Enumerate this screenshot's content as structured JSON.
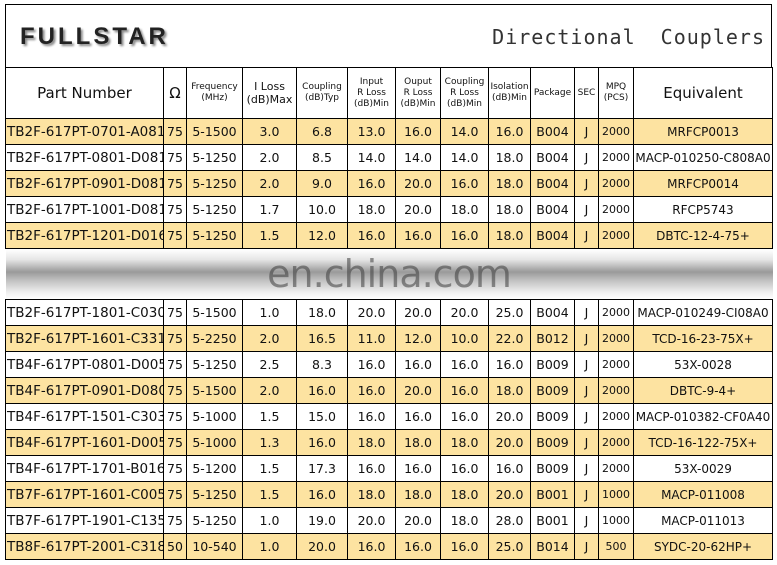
{
  "header": {
    "logo": "FULLSTAR",
    "title": "Directional Couplers"
  },
  "table": {
    "columns": [
      [
        "Part Number"
      ],
      [
        "Ω"
      ],
      [
        "Frequency",
        "(MHz)"
      ],
      [
        "I Loss",
        "(dB)Max"
      ],
      [
        "Coupling",
        "(dB)Typ"
      ],
      [
        "Input",
        "R Loss",
        "(dB)Min"
      ],
      [
        "Ouput",
        "R Loss",
        "(dB)Min"
      ],
      [
        "Coupling",
        "R Loss",
        "(dB)Min"
      ],
      [
        "Isolation",
        "(dB)Min"
      ],
      [
        "Package"
      ],
      [
        "SEC"
      ],
      [
        "MPQ",
        "(PCS)"
      ],
      [
        "Equivalent"
      ]
    ],
    "rows": [
      [
        "TB2F-617PT-0701-A081",
        "75",
        "5-1500",
        "3.0",
        "6.8",
        "13.0",
        "16.0",
        "14.0",
        "16.0",
        "B004",
        "J",
        "2000",
        "MRFCP0013"
      ],
      [
        "TB2F-617PT-0801-D081",
        "75",
        "5-1250",
        "2.0",
        "8.5",
        "14.0",
        "14.0",
        "14.0",
        "18.0",
        "B004",
        "J",
        "2000",
        "MACP-010250-C808A0"
      ],
      [
        "TB2F-617PT-0901-D081",
        "75",
        "5-1250",
        "2.0",
        "9.0",
        "16.0",
        "20.0",
        "16.0",
        "18.0",
        "B004",
        "J",
        "2000",
        "MRFCP0014"
      ],
      [
        "TB2F-617PT-1001-D081",
        "75",
        "5-1250",
        "1.7",
        "10.0",
        "18.0",
        "20.0",
        "18.0",
        "18.0",
        "B004",
        "J",
        "2000",
        "RFCP5743"
      ],
      [
        "TB2F-617PT-1201-D016",
        "75",
        "5-1250",
        "1.5",
        "12.0",
        "16.0",
        "16.0",
        "16.0",
        "18.0",
        "B004",
        "J",
        "2000",
        "DBTC-12-4-75+"
      ]
    ],
    "watermark": "en.china.com",
    "rows_after": [
      [
        "TB2F-617PT-1801-C030",
        "75",
        "5-1500",
        "1.0",
        "18.0",
        "20.0",
        "20.0",
        "20.0",
        "25.0",
        "B004",
        "J",
        "2000",
        "MACP-010249-CI08A0"
      ],
      [
        "TB2F-617PT-1601-C331",
        "75",
        "5-2250",
        "2.0",
        "16.5",
        "11.0",
        "12.0",
        "10.0",
        "22.0",
        "B012",
        "J",
        "2000",
        "TCD-16-23-75X+"
      ],
      [
        "TB4F-617PT-0801-D005",
        "75",
        "5-1250",
        "2.5",
        "8.3",
        "16.0",
        "16.0",
        "16.0",
        "16.0",
        "B009",
        "J",
        "2000",
        "53X-0028"
      ],
      [
        "TB4F-617PT-0901-D080",
        "75",
        "5-1500",
        "2.0",
        "16.0",
        "16.0",
        "20.0",
        "16.0",
        "18.0",
        "B009",
        "J",
        "2000",
        "DBTC-9-4+"
      ],
      [
        "TB4F-617PT-1501-C303",
        "75",
        "5-1000",
        "1.5",
        "15.0",
        "16.0",
        "16.0",
        "16.0",
        "20.0",
        "B009",
        "J",
        "2000",
        "MACP-010382-CF0A40"
      ],
      [
        "TB4F-617PT-1601-D005",
        "75",
        "5-1000",
        "1.3",
        "16.0",
        "18.0",
        "18.0",
        "18.0",
        "20.0",
        "B009",
        "J",
        "2000",
        "TCD-16-122-75X+"
      ],
      [
        "TB4F-617PT-1701-B016",
        "75",
        "5-1200",
        "1.5",
        "17.3",
        "16.0",
        "16.0",
        "16.0",
        "16.0",
        "B009",
        "J",
        "2000",
        "53X-0029"
      ],
      [
        "TB7F-617PT-1601-C005",
        "75",
        "5-1250",
        "1.5",
        "16.0",
        "18.0",
        "18.0",
        "18.0",
        "20.0",
        "B001",
        "J",
        "1000",
        "MACP-011008"
      ],
      [
        "TB7F-617PT-1901-C135",
        "75",
        "5-1250",
        "1.0",
        "19.0",
        "20.0",
        "20.0",
        "18.0",
        "28.0",
        "B001",
        "J",
        "1000",
        "MACP-011013"
      ],
      [
        "TB8F-617PT-2001-C318",
        "50",
        "10-540",
        "1.0",
        "20.0",
        "16.0",
        "16.0",
        "16.0",
        "25.0",
        "B014",
        "J",
        "500",
        "SYDC-20-62HP+"
      ]
    ]
  }
}
